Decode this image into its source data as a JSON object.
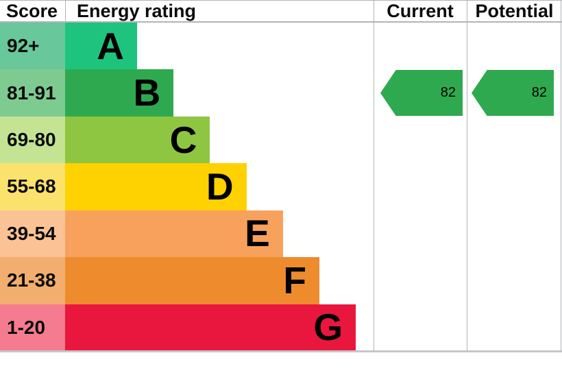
{
  "header": {
    "score": "Score",
    "energy_rating": "Energy rating",
    "current": "Current",
    "potential": "Potential"
  },
  "chart_data": {
    "type": "bar",
    "title": "Energy rating",
    "categories": [
      "A",
      "B",
      "C",
      "D",
      "E",
      "F",
      "G"
    ],
    "bands": [
      {
        "letter": "A",
        "score_range": "92+",
        "bar_color": "#1ec47d",
        "range_color": "#68c89b"
      },
      {
        "letter": "B",
        "score_range": "81-91",
        "bar_color": "#2fa94f",
        "range_color": "#7ecb92"
      },
      {
        "letter": "C",
        "score_range": "69-80",
        "bar_color": "#8ec641",
        "range_color": "#c5e493"
      },
      {
        "letter": "D",
        "score_range": "55-68",
        "bar_color": "#fdd200",
        "range_color": "#fbe26d"
      },
      {
        "letter": "E",
        "score_range": "39-54",
        "bar_color": "#f8a15d",
        "range_color": "#fbc395"
      },
      {
        "letter": "F",
        "score_range": "21-38",
        "bar_color": "#ee8b2d",
        "range_color": "#f2ae6e"
      },
      {
        "letter": "G",
        "score_range": "1-20",
        "bar_color": "#e9173d",
        "range_color": "#f47b90"
      }
    ],
    "current": {
      "value": "82",
      "band": "B",
      "arrow_color": "#2fa94f"
    },
    "potential": {
      "value": "82",
      "band": "B",
      "arrow_color": "#2fa94f"
    }
  },
  "colors": {
    "border": "#b1b4b6",
    "bottom_rule": "#c6c6c9",
    "text": "#0b0c0c",
    "background": "#ffffff"
  }
}
